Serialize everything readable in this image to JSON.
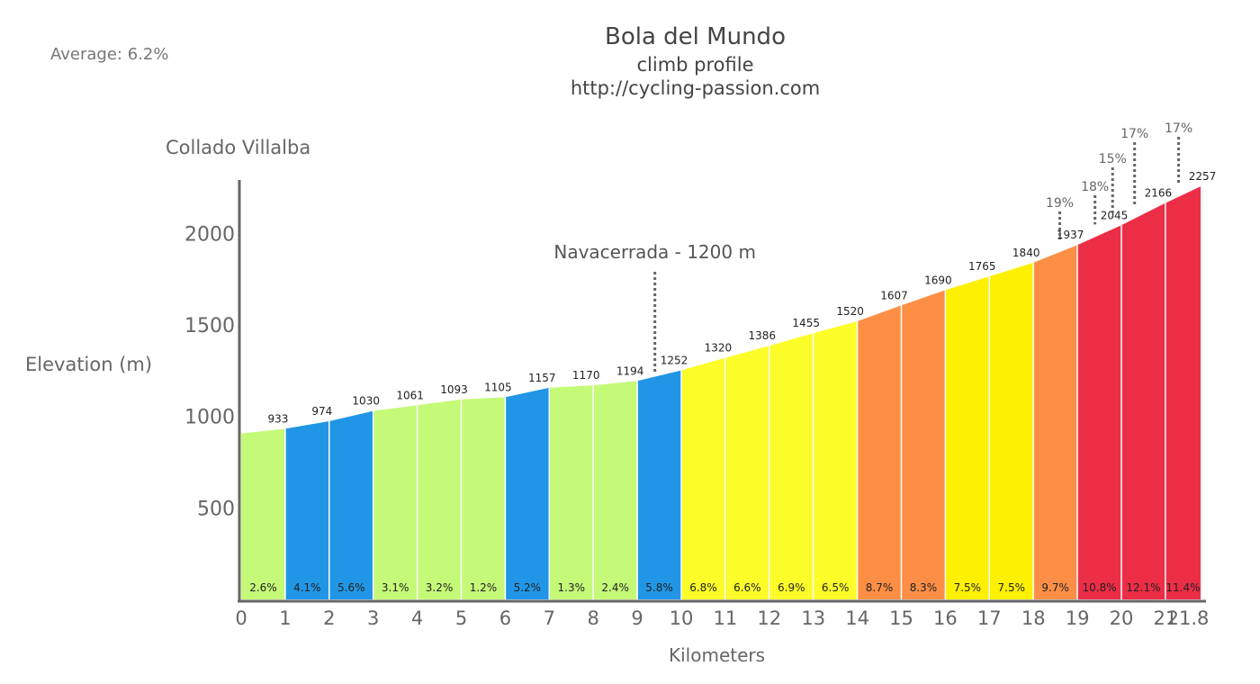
{
  "summary": {
    "average": "Average: 6.2%"
  },
  "chart_data": {
    "type": "area",
    "title": "Bola del Mundo",
    "subtitle": "climb profile",
    "source": "http://cycling-passion.com",
    "start_label": "Collado Villalba",
    "ylabel": "Elevation (m)",
    "xlabel": "Kilometers",
    "ylim": [
      0,
      2300
    ],
    "xlim": [
      0,
      21.8
    ],
    "yticks": [
      500,
      1000,
      1500,
      2000
    ],
    "xticks": [
      "0",
      "1",
      "2",
      "3",
      "4",
      "5",
      "6",
      "7",
      "8",
      "9",
      "10",
      "11",
      "12",
      "13",
      "14",
      "15",
      "16",
      "17",
      "18",
      "19",
      "20",
      "21",
      "21.8"
    ],
    "segments": [
      {
        "km": [
          0,
          1
        ],
        "elev": [
          907,
          933
        ],
        "gradient": "2.6%",
        "color": "#c5fa78"
      },
      {
        "km": [
          1,
          2
        ],
        "elev": [
          933,
          974
        ],
        "gradient": "4.1%",
        "color": "#2196e6"
      },
      {
        "km": [
          2,
          3
        ],
        "elev": [
          974,
          1030
        ],
        "gradient": "5.6%",
        "color": "#2196e6"
      },
      {
        "km": [
          3,
          4
        ],
        "elev": [
          1030,
          1061
        ],
        "gradient": "3.1%",
        "color": "#c5fa78"
      },
      {
        "km": [
          4,
          5
        ],
        "elev": [
          1061,
          1093
        ],
        "gradient": "3.2%",
        "color": "#c5fa78"
      },
      {
        "km": [
          5,
          6
        ],
        "elev": [
          1093,
          1105
        ],
        "gradient": "1.2%",
        "color": "#c5fa78"
      },
      {
        "km": [
          6,
          7
        ],
        "elev": [
          1105,
          1157
        ],
        "gradient": "5.2%",
        "color": "#2196e6"
      },
      {
        "km": [
          7,
          8
        ],
        "elev": [
          1157,
          1170
        ],
        "gradient": "1.3%",
        "color": "#c5fa78"
      },
      {
        "km": [
          8,
          9
        ],
        "elev": [
          1170,
          1194
        ],
        "gradient": "2.4%",
        "color": "#c5fa78"
      },
      {
        "km": [
          9,
          10
        ],
        "elev": [
          1194,
          1252
        ],
        "gradient": "5.8%",
        "color": "#2196e6"
      },
      {
        "km": [
          10,
          11
        ],
        "elev": [
          1252,
          1320
        ],
        "gradient": "6.8%",
        "color": "#fdfd2a"
      },
      {
        "km": [
          11,
          12
        ],
        "elev": [
          1320,
          1386
        ],
        "gradient": "6.6%",
        "color": "#fdfd2a"
      },
      {
        "km": [
          12,
          13
        ],
        "elev": [
          1386,
          1455
        ],
        "gradient": "6.9%",
        "color": "#fdfd2a"
      },
      {
        "km": [
          13,
          14
        ],
        "elev": [
          1455,
          1520
        ],
        "gradient": "6.5%",
        "color": "#fdfd2a"
      },
      {
        "km": [
          14,
          15
        ],
        "elev": [
          1520,
          1607
        ],
        "gradient": "8.7%",
        "color": "#fd8e45"
      },
      {
        "km": [
          15,
          16
        ],
        "elev": [
          1607,
          1690
        ],
        "gradient": "8.3%",
        "color": "#fd8e45"
      },
      {
        "km": [
          16,
          17
        ],
        "elev": [
          1690,
          1765
        ],
        "gradient": "7.5%",
        "color": "#fdf000"
      },
      {
        "km": [
          17,
          18
        ],
        "elev": [
          1765,
          1840
        ],
        "gradient": "7.5%",
        "color": "#fdf000"
      },
      {
        "km": [
          18,
          19
        ],
        "elev": [
          1840,
          1937
        ],
        "gradient": "9.7%",
        "color": "#fd8e45"
      },
      {
        "km": [
          19,
          20
        ],
        "elev": [
          1937,
          2045
        ],
        "gradient": "10.8%",
        "color": "#ec2d46"
      },
      {
        "km": [
          20,
          21
        ],
        "elev": [
          2045,
          2166
        ],
        "gradient": "12.1%",
        "color": "#ec2d46"
      },
      {
        "km": [
          21,
          21.8
        ],
        "elev": [
          2166,
          2257
        ],
        "gradient": "11.4%",
        "color": "#ec2d46"
      }
    ],
    "elevation_labels": [
      {
        "km": 1,
        "value": "933"
      },
      {
        "km": 2,
        "value": "974"
      },
      {
        "km": 3,
        "value": "1030"
      },
      {
        "km": 4,
        "value": "1061"
      },
      {
        "km": 5,
        "value": "1093"
      },
      {
        "km": 6,
        "value": "1105"
      },
      {
        "km": 7,
        "value": "1157"
      },
      {
        "km": 8,
        "value": "1170"
      },
      {
        "km": 9,
        "value": "1194"
      },
      {
        "km": 10,
        "value": "1252"
      },
      {
        "km": 11,
        "value": "1320"
      },
      {
        "km": 12,
        "value": "1386"
      },
      {
        "km": 13,
        "value": "1455"
      },
      {
        "km": 14,
        "value": "1520"
      },
      {
        "km": 15,
        "value": "1607"
      },
      {
        "km": 16,
        "value": "1690"
      },
      {
        "km": 17,
        "value": "1765"
      },
      {
        "km": 18,
        "value": "1840"
      },
      {
        "km": 19,
        "value": "1937"
      },
      {
        "km": 20,
        "value": "2045"
      },
      {
        "km": 21,
        "value": "2166"
      },
      {
        "km": 21.8,
        "value": "2257"
      }
    ],
    "waypoint": {
      "label": "Navacerrada - 1200 m",
      "km": 9.4
    },
    "max_gradients": [
      {
        "km": 18.6,
        "label": "19%"
      },
      {
        "km": 19.4,
        "label": "18%"
      },
      {
        "km": 19.8,
        "label": "15%"
      },
      {
        "km": 20.3,
        "label": "17%"
      },
      {
        "km": 21.3,
        "label": "17%"
      }
    ]
  }
}
